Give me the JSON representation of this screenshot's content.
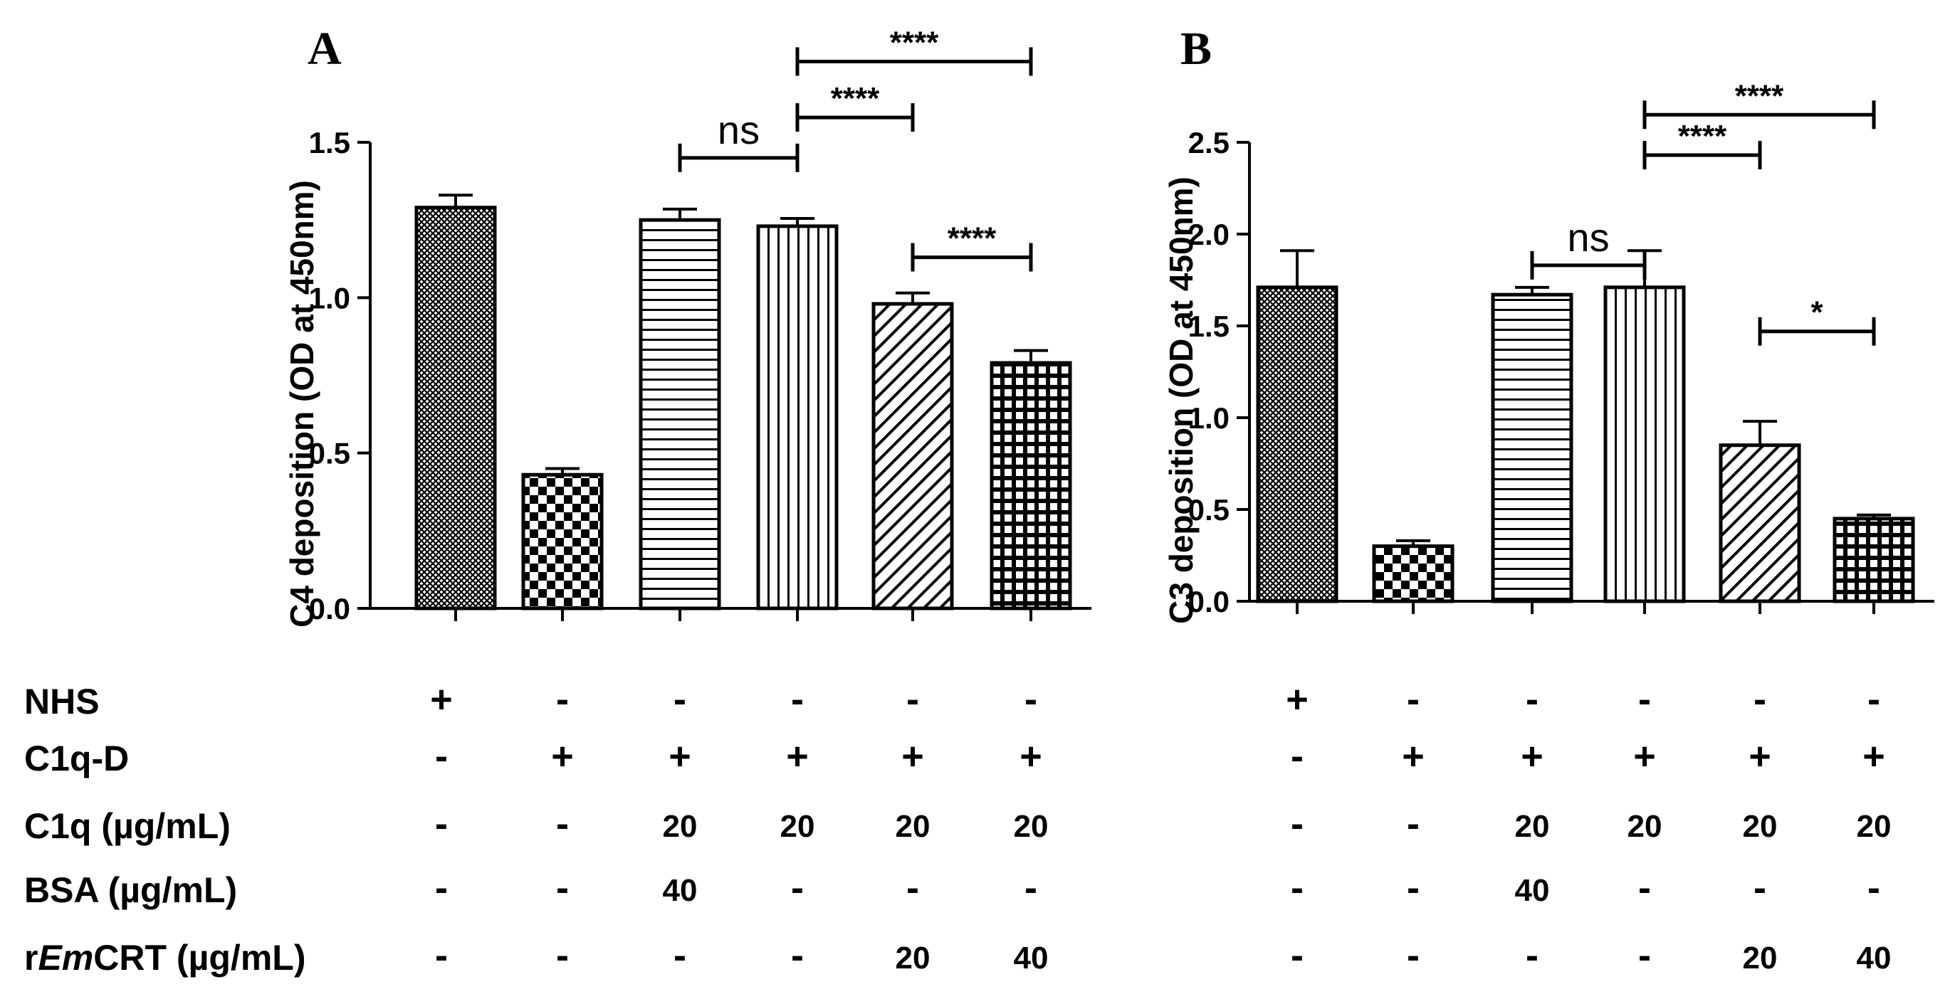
{
  "chart_data": [
    {
      "type": "bar",
      "panel": "A",
      "ylabel": "C4 deposition (OD at 450nm)",
      "ylim": [
        0,
        1.5
      ],
      "yticks": [
        "0.0",
        "0.5",
        "1.0",
        "1.5"
      ],
      "values": [
        1.29,
        0.43,
        1.25,
        1.23,
        0.98,
        0.79
      ],
      "errors": [
        0.04,
        0.02,
        0.035,
        0.025,
        0.035,
        0.04
      ],
      "patterns": [
        "fine-cross",
        "checker",
        "horizontal",
        "vertical",
        "diagonal",
        "grid-dark"
      ],
      "comparisons": [
        {
          "from": 2,
          "to": 3,
          "label": "ns",
          "y": 1.45
        },
        {
          "from": 3,
          "to": 4,
          "label": "****",
          "y": 1.58
        },
        {
          "from": 3,
          "to": 5,
          "label": "****",
          "y": 1.76
        },
        {
          "from": 4,
          "to": 5,
          "label": "****",
          "y": 1.13
        }
      ]
    },
    {
      "type": "bar",
      "panel": "B",
      "ylabel": "C3 deposition (OD at 450nm)",
      "ylim": [
        0,
        2.5
      ],
      "yticks": [
        "0.0",
        "0.5",
        "1.0",
        "1.5",
        "2.0",
        "2.5"
      ],
      "values": [
        1.71,
        0.3,
        1.67,
        1.71,
        0.85,
        0.45
      ],
      "errors": [
        0.2,
        0.03,
        0.04,
        0.2,
        0.13,
        0.02
      ],
      "patterns": [
        "fine-cross",
        "checker",
        "horizontal",
        "vertical",
        "diagonal",
        "grid-dark"
      ],
      "comparisons": [
        {
          "from": 2,
          "to": 3,
          "label": "ns",
          "y": 1.83
        },
        {
          "from": 3,
          "to": 4,
          "label": "****",
          "y": 2.43
        },
        {
          "from": 3,
          "to": 5,
          "label": "****",
          "y": 2.65
        },
        {
          "from": 4,
          "to": 5,
          "label": "*",
          "y": 1.47
        }
      ]
    }
  ],
  "conditions": {
    "row_labels": [
      "NHS",
      "C1q-D",
      "C1q (µg/mL)",
      "BSA (µg/mL)",
      "rEmCRT (µg/mL)"
    ],
    "rows": [
      [
        "+",
        "-",
        "-",
        "-",
        "-",
        "-"
      ],
      [
        "-",
        "+",
        "+",
        "+",
        "+",
        "+"
      ],
      [
        "-",
        "-",
        "20",
        "20",
        "20",
        "20"
      ],
      [
        "-",
        "-",
        "40",
        "-",
        "-",
        "-"
      ],
      [
        "-",
        "-",
        "-",
        "-",
        "20",
        "40"
      ]
    ]
  }
}
